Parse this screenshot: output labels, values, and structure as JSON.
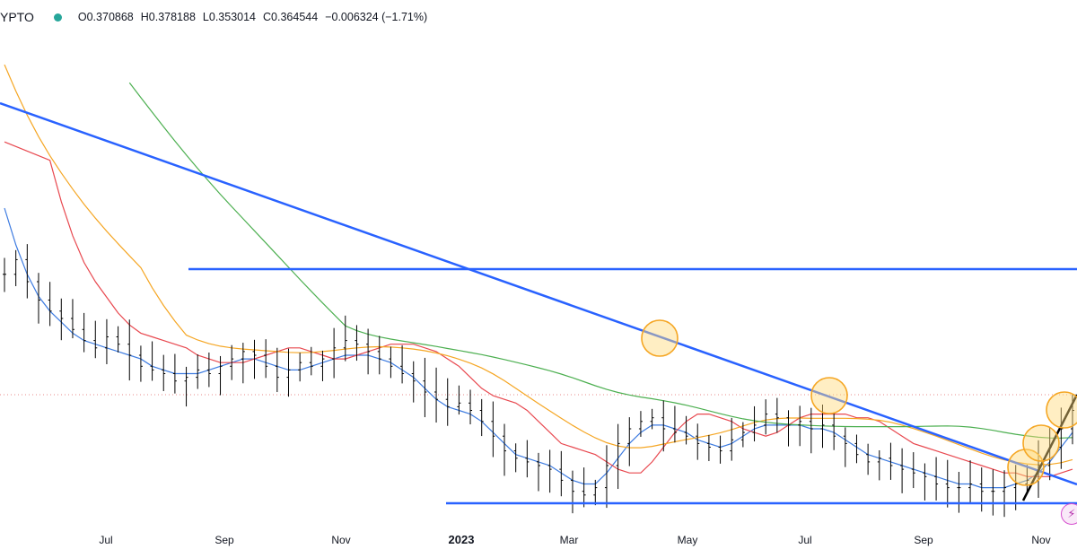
{
  "header": {
    "symbol": "YPTO",
    "ohlc": [
      {
        "key": "O",
        "value": "0.370868"
      },
      {
        "key": "H",
        "value": "0.378188"
      },
      {
        "key": "L",
        "value": "0.353014"
      },
      {
        "key": "C",
        "value": "0.364544"
      }
    ],
    "change": "−0.006324 (−1.71%)",
    "status_color": "#26a69a"
  },
  "tool_icon": {
    "name": "lightning-icon",
    "glyph": "⚡"
  },
  "chart_data": {
    "type": "candlestick",
    "title": "",
    "xlabel": "",
    "ylabel": "",
    "x_ticks": [
      "Jul",
      "Sep",
      "Nov",
      "2023",
      "Mar",
      "May",
      "Jul",
      "Sep",
      "Nov"
    ],
    "y_range_norm": [
      0,
      1
    ],
    "colors": {
      "candles": "#000000",
      "ma_fast": "#3d7be0",
      "ma_mid": "#e8484f",
      "ma_slow": "#f5a623",
      "ma_long": "#4caf50",
      "trendline": "#2962ff",
      "uptrend": "#000000",
      "highlight_fill": "#ffd97a",
      "highlight_stroke": "#f5a623",
      "price_line": "#e05a5a"
    },
    "candles_weekly_close": [
      0.62,
      0.66,
      0.6,
      0.55,
      0.52,
      0.5,
      0.47,
      0.44,
      0.42,
      0.45,
      0.43,
      0.4,
      0.37,
      0.36,
      0.35,
      0.33,
      0.34,
      0.36,
      0.35,
      0.37,
      0.39,
      0.41,
      0.4,
      0.37,
      0.34,
      0.36,
      0.38,
      0.37,
      0.39,
      0.42,
      0.44,
      0.43,
      0.41,
      0.39,
      0.37,
      0.35,
      0.33,
      0.3,
      0.28,
      0.26,
      0.27,
      0.25,
      0.22,
      0.18,
      0.14,
      0.12,
      0.11,
      0.1,
      0.09,
      0.06,
      0.03,
      0.02,
      0.04,
      0.1,
      0.16,
      0.2,
      0.22,
      0.23,
      0.2,
      0.19,
      0.18,
      0.16,
      0.15,
      0.14,
      0.17,
      0.19,
      0.21,
      0.24,
      0.23,
      0.21,
      0.22,
      0.2,
      0.21,
      0.18,
      0.16,
      0.13,
      0.11,
      0.12,
      0.1,
      0.09,
      0.08,
      0.07,
      0.05,
      0.04,
      0.04,
      0.05,
      0.03,
      0.03,
      0.04,
      0.05,
      0.06,
      0.1,
      0.15,
      0.2,
      0.25
    ],
    "ma_fast_norm": [
      0.8,
      0.7,
      0.62,
      0.56,
      0.52,
      0.49,
      0.46,
      0.44,
      0.43,
      0.42,
      0.41,
      0.4,
      0.39,
      0.37,
      0.36,
      0.35,
      0.35,
      0.35,
      0.36,
      0.37,
      0.38,
      0.39,
      0.39,
      0.38,
      0.37,
      0.36,
      0.36,
      0.37,
      0.38,
      0.39,
      0.4,
      0.4,
      0.4,
      0.39,
      0.38,
      0.36,
      0.34,
      0.31,
      0.28,
      0.26,
      0.25,
      0.24,
      0.22,
      0.19,
      0.16,
      0.13,
      0.12,
      0.11,
      0.1,
      0.08,
      0.06,
      0.05,
      0.05,
      0.08,
      0.12,
      0.16,
      0.19,
      0.21,
      0.21,
      0.2,
      0.19,
      0.17,
      0.16,
      0.15,
      0.16,
      0.18,
      0.2,
      0.21,
      0.21,
      0.21,
      0.21,
      0.2,
      0.2,
      0.19,
      0.17,
      0.15,
      0.13,
      0.12,
      0.11,
      0.1,
      0.09,
      0.08,
      0.07,
      0.06,
      0.05,
      0.05,
      0.04,
      0.04,
      0.04,
      0.05,
      0.06,
      0.08,
      0.11,
      0.15,
      0.19
    ]
  }
}
